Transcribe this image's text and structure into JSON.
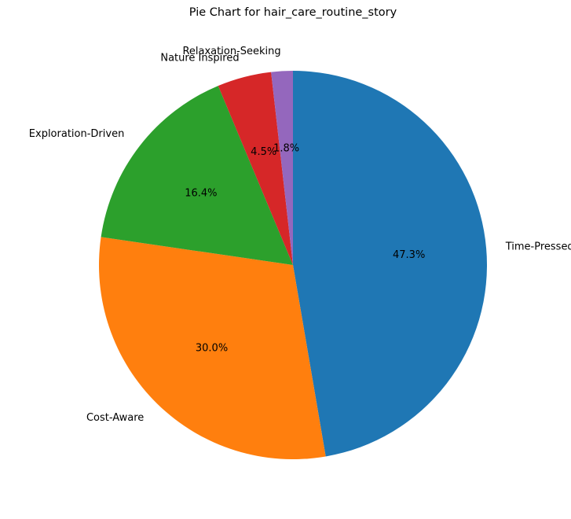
{
  "chart_data": {
    "type": "pie",
    "title": "Pie Chart for hair_care_routine_story",
    "start_angle_deg": 90,
    "direction": "clockwise",
    "slices": [
      {
        "label": "Time-Pressed",
        "value": 47.3,
        "pct_label": "47.3%",
        "color": "#1f77b4"
      },
      {
        "label": "Cost-Aware",
        "value": 30.0,
        "pct_label": "30.0%",
        "color": "#ff7f0e"
      },
      {
        "label": "Exploration-Driven",
        "value": 16.4,
        "pct_label": "16.4%",
        "color": "#2ca02c"
      },
      {
        "label": "Nature Inspired",
        "value": 4.5,
        "pct_label": "4.5%",
        "color": "#d62728"
      },
      {
        "label": "Relaxation-Seeking",
        "value": 1.8,
        "pct_label": "1.8%",
        "color": "#9467bd"
      }
    ]
  }
}
